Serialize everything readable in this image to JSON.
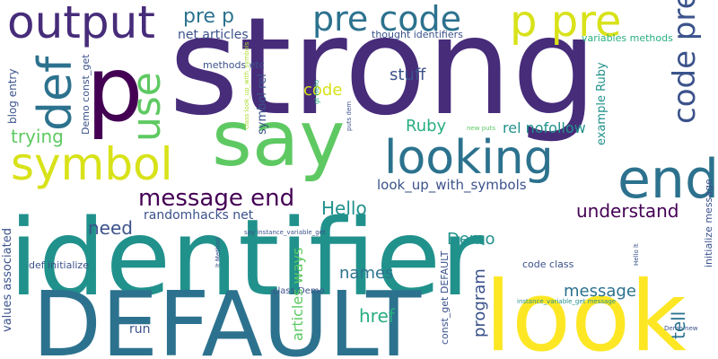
{
  "background": "#ffffff",
  "palette": {
    "dark_purple": "#440154",
    "indigo": "#472c7a",
    "blue": "#3b528b",
    "steel_blue": "#2c728e",
    "teal": "#21918c",
    "green_teal": "#28ae80",
    "green": "#5ec962",
    "lime": "#addc30",
    "yellow": "#fde725"
  },
  "words": [
    {
      "text": "identifier",
      "color": "#21918c"
    },
    {
      "text": "strong",
      "color": "#472c7a"
    },
    {
      "text": "DEFAULT",
      "color": "#2c728e"
    },
    {
      "text": "look",
      "color": "#fde725"
    },
    {
      "text": "say",
      "color": "#5ec962"
    },
    {
      "text": "p",
      "color": "#440154"
    },
    {
      "text": "output",
      "color": "#472c7a"
    },
    {
      "text": "looking",
      "color": "#2c728e"
    },
    {
      "text": "symbol",
      "color": "#d8e219"
    },
    {
      "text": "end",
      "color": "#2c728e"
    },
    {
      "text": "pre code",
      "color": "#2c728e"
    },
    {
      "text": "p pre",
      "color": "#d8e219"
    },
    {
      "text": "def",
      "color": "#2c728e"
    },
    {
      "text": "use",
      "color": "#5ec962"
    },
    {
      "text": "code pre",
      "color": "#3b528b"
    },
    {
      "text": "message end",
      "color": "#440154"
    },
    {
      "text": "pre p",
      "color": "#2c728e"
    },
    {
      "text": "net articles",
      "color": "#3b528b"
    },
    {
      "text": "thought identifiers",
      "color": "#3b528b"
    },
    {
      "text": "variables methods",
      "color": "#28ae80"
    },
    {
      "text": "methods etc",
      "color": "#3b528b"
    },
    {
      "text": "code",
      "color": "#d8e219"
    },
    {
      "text": "stuff",
      "color": "#3b528b"
    },
    {
      "text": "Ruby",
      "color": "#28ae80"
    },
    {
      "text": "rel nofollow",
      "color": "#21918c"
    },
    {
      "text": "trying",
      "color": "#5ec962"
    },
    {
      "text": "need",
      "color": "#3b528b"
    },
    {
      "text": "randomhacks net",
      "color": "#3b528b"
    },
    {
      "text": "look_up_with_symbols",
      "color": "#3b528b"
    },
    {
      "text": "Hello",
      "color": "#21918c"
    },
    {
      "text": "understand",
      "color": "#440154"
    },
    {
      "text": "def initialize",
      "color": "#3b528b"
    },
    {
      "text": "code class",
      "color": "#3b528b"
    },
    {
      "text": "names",
      "color": "#2c728e"
    },
    {
      "text": "Demo",
      "color": "#21918c"
    },
    {
      "text": "message",
      "color": "#2c728e"
    },
    {
      "text": "href",
      "color": "#28ae80"
    },
    {
      "text": "run",
      "color": "#3b528b"
    },
    {
      "text": "class Demo",
      "color": "#3b528b"
    },
    {
      "text": "instance_variable_get message",
      "color": "#21918c"
    },
    {
      "text": "Demo new",
      "color": "#3b528b"
    },
    {
      "text": "say instance_variable_get",
      "color": "#3b528b"
    },
    {
      "text": "new puts",
      "color": "#5ec962"
    },
    {
      "text": "blog entry",
      "color": "#3b528b"
    },
    {
      "text": "Demo const_get",
      "color": "#3b528b"
    },
    {
      "text": "values associated",
      "color": "#3b528b"
    },
    {
      "text": "symbol rel",
      "color": "#3b528b"
    },
    {
      "text": "articles ways",
      "color": "#5ec962"
    },
    {
      "text": "program",
      "color": "#3b528b"
    },
    {
      "text": "const_get DEFAULT",
      "color": "#3b528b"
    },
    {
      "text": "example Ruby",
      "color": "#21918c"
    },
    {
      "text": "tell",
      "color": "#2c728e"
    },
    {
      "text": "initialize message",
      "color": "#3b528b"
    },
    {
      "text": "Hello lt",
      "color": "#3b528b"
    },
    {
      "text": "lt Method",
      "color": "#3b528b"
    },
    {
      "text": "gt Hello",
      "color": "#28ae80"
    },
    {
      "text": "puts dem",
      "color": "#3b528b"
    },
    {
      "text": "say gt",
      "color": "#5ec962"
    },
    {
      "text": "class look_up_with_symbols",
      "color": "#addc30"
    }
  ]
}
